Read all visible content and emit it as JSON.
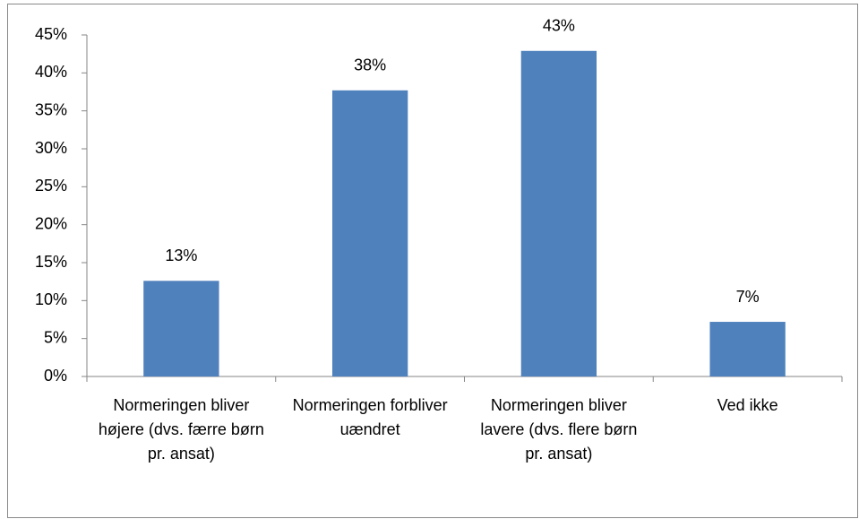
{
  "chart_data": {
    "type": "bar",
    "categories": [
      "Normeringen bliver højere (dvs. færre børn pr. ansat)",
      "Normeringen forbliver uændret",
      "Normeringen bliver lavere (dvs. flere børn pr. ansat)",
      "Ved ikke"
    ],
    "values": [
      12.6,
      37.7,
      42.9,
      7.2
    ],
    "value_labels": [
      "13%",
      "38%",
      "43%",
      "7%"
    ],
    "color": "#4f81bd",
    "ylim": [
      0,
      45
    ],
    "yticks": [
      {
        "value": 0,
        "label": "0%"
      },
      {
        "value": 5,
        "label": "5%"
      },
      {
        "value": 10,
        "label": "10%"
      },
      {
        "value": 15,
        "label": "15%"
      },
      {
        "value": 20,
        "label": "20%"
      },
      {
        "value": 25,
        "label": "25%"
      },
      {
        "value": 30,
        "label": "30%"
      },
      {
        "value": 35,
        "label": "35%"
      },
      {
        "value": 40,
        "label": "40%"
      },
      {
        "value": 45,
        "label": "45%"
      }
    ],
    "grid": false
  }
}
